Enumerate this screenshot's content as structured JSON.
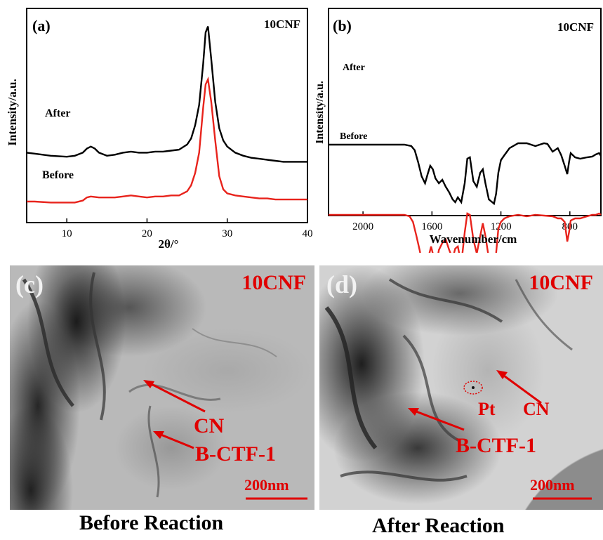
{
  "figure": {
    "panel_a": {
      "letter": "(a)",
      "sample": "10CNF",
      "ylabel": "Intensity/a.u.",
      "xlabel": "2θ/°",
      "series": [
        {
          "name": "After"
        },
        {
          "name": "Before"
        }
      ]
    },
    "panel_b": {
      "letter": "(b)",
      "sample": "10CNF",
      "ylabel": "Intensity/a.u.",
      "xlabel": "Wavenumber/cm",
      "series": [
        {
          "name": "After"
        },
        {
          "name": "Before"
        }
      ]
    },
    "panel_c": {
      "letter": "(c)",
      "sample": "10CNF",
      "labels": [
        "CN",
        "B-CTF-1"
      ],
      "scale_bar": "200nm",
      "caption": "Before Reaction"
    },
    "panel_d": {
      "letter": "(d)",
      "sample": "10CNF",
      "labels": [
        "Pt",
        "CN",
        "B-CTF-1"
      ],
      "scale_bar": "200nm",
      "caption": "After Reaction"
    }
  },
  "colors": {
    "after": "#000000",
    "before": "#e8231c",
    "annotation": "#e00000"
  },
  "chart_data": [
    {
      "type": "line",
      "xlabel": "2θ/°",
      "ylabel": "Intensity/a.u.",
      "xlim": [
        5,
        40
      ],
      "xticks": [
        10,
        20,
        30,
        40
      ],
      "y_ticks_shown": false,
      "grid": false,
      "series": [
        {
          "name": "After",
          "color": "#000000",
          "x": [
            5,
            6,
            8,
            10,
            11,
            12,
            12.5,
            13,
            13.5,
            14,
            15,
            16,
            17,
            18,
            19,
            20,
            21,
            22,
            23,
            24,
            25,
            25.5,
            26,
            26.5,
            27,
            27.3,
            27.6,
            28,
            28.5,
            29,
            29.5,
            30,
            31,
            32,
            33,
            34,
            35,
            36,
            37,
            38,
            39,
            40
          ],
          "y": [
            0.28,
            0.27,
            0.25,
            0.24,
            0.25,
            0.28,
            0.32,
            0.34,
            0.32,
            0.28,
            0.25,
            0.26,
            0.28,
            0.29,
            0.28,
            0.28,
            0.29,
            0.29,
            0.3,
            0.31,
            0.36,
            0.42,
            0.55,
            0.75,
            1.15,
            1.46,
            1.52,
            1.2,
            0.78,
            0.52,
            0.4,
            0.34,
            0.28,
            0.25,
            0.23,
            0.22,
            0.21,
            0.2,
            0.19,
            0.19,
            0.19,
            0.19
          ]
        },
        {
          "name": "Before",
          "color": "#e8231c",
          "x": [
            5,
            6,
            8,
            10,
            11,
            12,
            12.5,
            13,
            14,
            15,
            16,
            17,
            18,
            19,
            20,
            21,
            22,
            23,
            24,
            25,
            25.5,
            26,
            26.5,
            27,
            27.3,
            27.6,
            28,
            28.5,
            29,
            29.5,
            30,
            31,
            32,
            33,
            34,
            35,
            36,
            37,
            38,
            39,
            40
          ],
          "y": [
            -0.2,
            -0.2,
            -0.21,
            -0.21,
            -0.21,
            -0.19,
            -0.16,
            -0.15,
            -0.16,
            -0.16,
            -0.16,
            -0.15,
            -0.14,
            -0.15,
            -0.16,
            -0.15,
            -0.15,
            -0.14,
            -0.14,
            -0.1,
            -0.04,
            0.08,
            0.28,
            0.72,
            0.95,
            1.0,
            0.78,
            0.4,
            0.05,
            -0.08,
            -0.12,
            -0.14,
            -0.15,
            -0.16,
            -0.17,
            -0.17,
            -0.18,
            -0.18,
            -0.18,
            -0.18,
            -0.18
          ]
        }
      ]
    },
    {
      "type": "line",
      "xlabel": "Wavenumber/cm",
      "ylabel": "Intensity/a.u.",
      "xlim": [
        2200,
        620
      ],
      "xticks": [
        2000,
        1600,
        1200,
        800
      ],
      "y_ticks_shown": false,
      "grid": false,
      "series": [
        {
          "name": "After",
          "color": "#000000",
          "x": [
            2200,
            2000,
            1800,
            1760,
            1720,
            1700,
            1680,
            1660,
            1640,
            1625,
            1610,
            1595,
            1580,
            1560,
            1540,
            1520,
            1500,
            1480,
            1465,
            1450,
            1430,
            1410,
            1395,
            1380,
            1360,
            1340,
            1320,
            1305,
            1290,
            1270,
            1250,
            1240,
            1228,
            1215,
            1200,
            1180,
            1150,
            1100,
            1050,
            1000,
            950,
            930,
            900,
            870,
            850,
            830,
            815,
            805,
            795,
            770,
            740,
            700,
            670,
            650,
            630,
            620
          ],
          "y": [
            0.0,
            0.0,
            0.0,
            0.0,
            -0.02,
            -0.08,
            -0.25,
            -0.45,
            -0.55,
            -0.42,
            -0.3,
            -0.35,
            -0.48,
            -0.55,
            -0.5,
            -0.6,
            -0.68,
            -0.78,
            -0.82,
            -0.75,
            -0.82,
            -0.55,
            -0.2,
            -0.18,
            -0.52,
            -0.6,
            -0.4,
            -0.35,
            -0.55,
            -0.78,
            -0.82,
            -0.84,
            -0.7,
            -0.4,
            -0.22,
            -0.15,
            -0.05,
            0.02,
            0.02,
            -0.02,
            0.02,
            0.01,
            -0.1,
            -0.05,
            -0.15,
            -0.3,
            -0.42,
            -0.25,
            -0.12,
            -0.18,
            -0.2,
            -0.18,
            -0.17,
            -0.14,
            -0.12,
            -0.16
          ]
        },
        {
          "name": "Before",
          "color": "#e8231c",
          "x": [
            2200,
            2000,
            1800,
            1760,
            1730,
            1710,
            1690,
            1670,
            1650,
            1635,
            1620,
            1605,
            1590,
            1575,
            1560,
            1540,
            1520,
            1500,
            1480,
            1465,
            1450,
            1430,
            1410,
            1395,
            1380,
            1360,
            1340,
            1320,
            1305,
            1290,
            1270,
            1250,
            1240,
            1228,
            1215,
            1200,
            1180,
            1150,
            1100,
            1050,
            1000,
            950,
            900,
            870,
            850,
            830,
            815,
            805,
            795,
            770,
            740,
            700,
            670,
            650,
            630,
            620
          ],
          "y": [
            -1.0,
            -1.0,
            -1.0,
            -1.0,
            -1.02,
            -1.1,
            -1.3,
            -1.52,
            -1.82,
            -1.88,
            -1.6,
            -1.45,
            -1.6,
            -1.72,
            -1.5,
            -1.4,
            -1.35,
            -1.5,
            -1.62,
            -1.48,
            -1.45,
            -1.7,
            -1.25,
            -0.98,
            -1.0,
            -1.35,
            -1.55,
            -1.3,
            -1.12,
            -1.3,
            -1.62,
            -1.8,
            -1.85,
            -1.55,
            -1.2,
            -1.1,
            -1.05,
            -1.02,
            -1.0,
            -1.02,
            -1.0,
            -1.01,
            -1.02,
            -1.05,
            -1.05,
            -1.1,
            -1.38,
            -1.25,
            -1.08,
            -1.05,
            -1.05,
            -1.02,
            -1.0,
            -1.0,
            -0.98,
            -1.0
          ]
        }
      ]
    }
  ]
}
